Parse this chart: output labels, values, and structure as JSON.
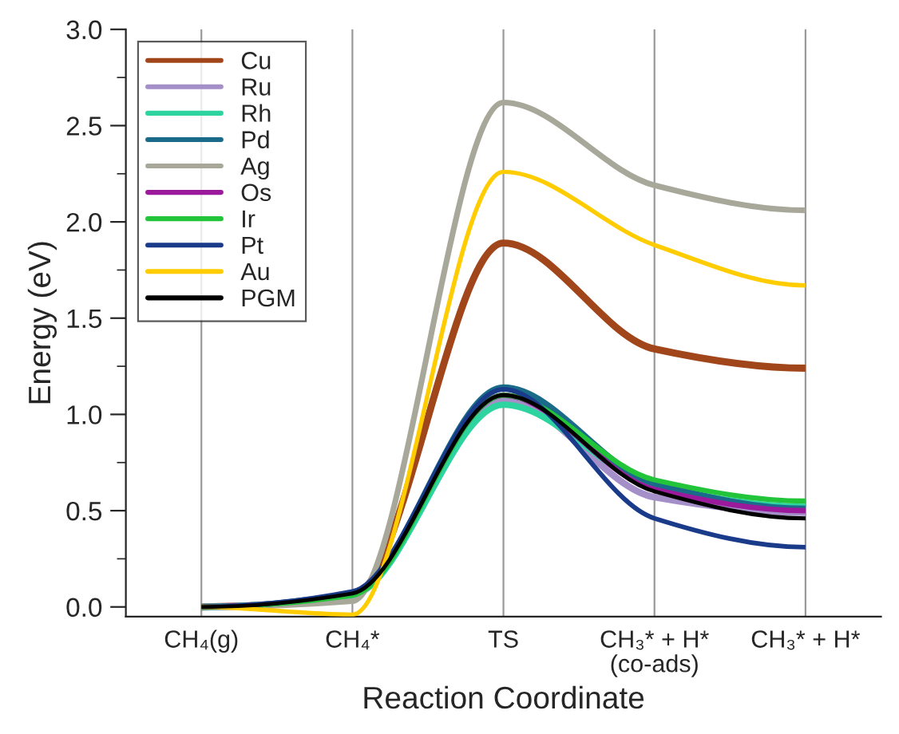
{
  "chart_data": {
    "type": "line",
    "xlabel": "Reaction Coordinate",
    "ylabel": "Energy (eV)",
    "categories": [
      "CH₄(g)",
      "CH₄*",
      "TS",
      "CH₃* + H*\n(co-ads)",
      "CH₃* + H*"
    ],
    "series": [
      {
        "name": "Cu",
        "color": "#a0461a",
        "values": [
          0,
          0.05,
          1.89,
          1.34,
          1.24
        ]
      },
      {
        "name": "Ru",
        "color": "#a58fc8",
        "values": [
          0,
          0.06,
          1.08,
          0.57,
          0.49
        ]
      },
      {
        "name": "Rh",
        "color": "#2dd4a0",
        "values": [
          0,
          0.06,
          1.05,
          0.63,
          0.52
        ]
      },
      {
        "name": "Pd",
        "color": "#1a6a8a",
        "values": [
          0,
          0.07,
          1.14,
          0.64,
          0.51
        ]
      },
      {
        "name": "Ag",
        "color": "#a8a89a",
        "values": [
          0,
          0.03,
          2.62,
          2.19,
          2.06
        ]
      },
      {
        "name": "Os",
        "color": "#9b1a9b",
        "values": [
          0,
          0.07,
          1.1,
          0.61,
          0.5
        ]
      },
      {
        "name": "Ir",
        "color": "#22c43a",
        "values": [
          0,
          0.06,
          1.1,
          0.66,
          0.55
        ]
      },
      {
        "name": "Pt",
        "color": "#1a3a8a",
        "values": [
          0,
          0.08,
          1.13,
          0.46,
          0.31
        ]
      },
      {
        "name": "Au",
        "color": "#ffcc00",
        "values": [
          0,
          -0.04,
          2.26,
          1.88,
          1.67
        ]
      },
      {
        "name": "PGM",
        "color": "#000000",
        "values": [
          0,
          0.07,
          1.1,
          0.6,
          0.46
        ]
      }
    ],
    "ylim": [
      -0.05,
      3.0
    ],
    "yticks": [
      {
        "value": 0,
        "label": "0.0"
      },
      {
        "value": 0.25,
        "label": null
      },
      {
        "value": 0.5,
        "label": "0.5"
      },
      {
        "value": 0.75,
        "label": null
      },
      {
        "value": 1.0,
        "label": "1.0"
      },
      {
        "value": 1.25,
        "label": null
      },
      {
        "value": 1.5,
        "label": "1.5"
      },
      {
        "value": 1.75,
        "label": null
      },
      {
        "value": 2.0,
        "label": "2.0"
      },
      {
        "value": 2.25,
        "label": null
      },
      {
        "value": 2.5,
        "label": "2.5"
      },
      {
        "value": 2.75,
        "label": null
      },
      {
        "value": 3.0,
        "label": "3.0"
      }
    ],
    "grid": "x",
    "legend": "top left",
    "line_style": "solid",
    "marker": "none"
  }
}
